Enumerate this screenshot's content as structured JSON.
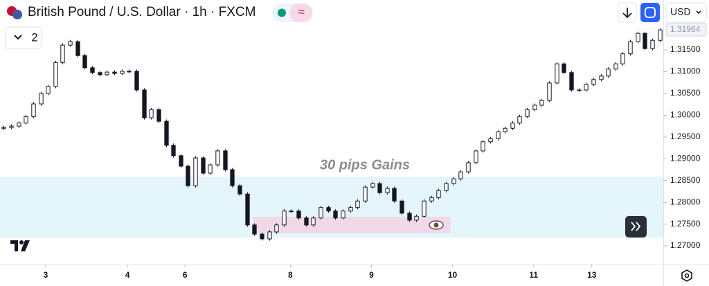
{
  "header": {
    "title": "British Pound / U.S. Dollar · 1h · FXCM",
    "currency": "USD",
    "layout_count": "2"
  },
  "chart_data": {
    "type": "candlestick",
    "annotation": "30 pips Gains",
    "up_color": "#ffffff",
    "down_color": "#131722",
    "border_color": "#131722",
    "xlim": [
      0,
      90
    ],
    "xticks": [
      {
        "value": 6.2,
        "label": "3"
      },
      {
        "value": 17.3,
        "label": "4"
      },
      {
        "value": 25.1,
        "label": "6"
      },
      {
        "value": 39.4,
        "label": "8"
      },
      {
        "value": 50.4,
        "label": "9"
      },
      {
        "value": 61.4,
        "label": "10"
      },
      {
        "value": 72.4,
        "label": "11"
      },
      {
        "value": 80.3,
        "label": "13"
      }
    ],
    "ylim": [
      1.26571,
      1.32646
    ],
    "yticks": [
      {
        "value": 1.27,
        "label": "1.27000"
      },
      {
        "value": 1.275,
        "label": "1.27500"
      },
      {
        "value": 1.28,
        "label": "1.28000"
      },
      {
        "value": 1.285,
        "label": "1.28500"
      },
      {
        "value": 1.29,
        "label": "1.29000"
      },
      {
        "value": 1.295,
        "label": "1.29500"
      },
      {
        "value": 1.3,
        "label": "1.30000"
      },
      {
        "value": 1.305,
        "label": "1.30500"
      },
      {
        "value": 1.31,
        "label": "1.31000"
      },
      {
        "value": 1.315,
        "label": "1.31500"
      }
    ],
    "last_price": {
      "value": 1.31964,
      "label": "1.31964"
    },
    "zones": [
      {
        "x": [
          0,
          90
        ],
        "y": [
          1.2719,
          1.2859
        ],
        "color": "#e4f6fb"
      },
      {
        "x": [
          34.3,
          61.1
        ],
        "y": [
          1.2729,
          1.2767
        ],
        "color": "#f1d9e8"
      }
    ],
    "candles": [
      [
        1.297,
        1.2976,
        1.2966,
        1.2972
      ],
      [
        1.2972,
        1.2979,
        1.2968,
        1.2975
      ],
      [
        1.2975,
        1.2986,
        1.2971,
        1.2982
      ],
      [
        1.2982,
        1.3001,
        1.2978,
        1.2997
      ],
      [
        1.2997,
        1.303,
        1.2993,
        1.3026
      ],
      [
        1.3026,
        1.3054,
        1.3022,
        1.305
      ],
      [
        1.305,
        1.307,
        1.3046,
        1.3066
      ],
      [
        1.3066,
        1.3125,
        1.3062,
        1.3121
      ],
      [
        1.3121,
        1.3165,
        1.3117,
        1.3161
      ],
      [
        1.3161,
        1.3173,
        1.3157,
        1.3169
      ],
      [
        1.3169,
        1.3173,
        1.3133,
        1.3137
      ],
      [
        1.3137,
        1.3141,
        1.3105,
        1.3109
      ],
      [
        1.3109,
        1.3113,
        1.3094,
        1.3098
      ],
      [
        1.3098,
        1.3102,
        1.3089,
        1.3093
      ],
      [
        1.3093,
        1.3103,
        1.3089,
        1.3099
      ],
      [
        1.3099,
        1.3103,
        1.3092,
        1.3096
      ],
      [
        1.3096,
        1.3105,
        1.3092,
        1.3101
      ],
      [
        1.3101,
        1.3105,
        1.3097,
        1.3101
      ],
      [
        1.3101,
        1.3105,
        1.3054,
        1.3058
      ],
      [
        1.3058,
        1.3062,
        1.299,
        1.2994
      ],
      [
        1.2994,
        1.3017,
        1.299,
        1.3013
      ],
      [
        1.3013,
        1.3017,
        1.2982,
        1.2986
      ],
      [
        1.2986,
        1.299,
        1.2927,
        1.2931
      ],
      [
        1.2931,
        1.2935,
        1.2903,
        1.2907
      ],
      [
        1.2907,
        1.2911,
        1.2879,
        1.2883
      ],
      [
        1.2883,
        1.2887,
        1.2834,
        1.2838
      ],
      [
        1.2838,
        1.2906,
        1.2834,
        1.2902
      ],
      [
        1.2902,
        1.2906,
        1.2863,
        1.2867
      ],
      [
        1.2867,
        1.289,
        1.2863,
        1.2886
      ],
      [
        1.2886,
        1.2922,
        1.2882,
        1.2918
      ],
      [
        1.2918,
        1.2922,
        1.2871,
        1.2875
      ],
      [
        1.2875,
        1.2879,
        1.2834,
        1.2838
      ],
      [
        1.2838,
        1.2842,
        1.2815,
        1.2819
      ],
      [
        1.2819,
        1.2823,
        1.2744,
        1.2748
      ],
      [
        1.2748,
        1.2752,
        1.2723,
        1.2727
      ],
      [
        1.2727,
        1.2731,
        1.2712,
        1.2716
      ],
      [
        1.2716,
        1.2736,
        1.2712,
        1.2732
      ],
      [
        1.2732,
        1.2752,
        1.2728,
        1.2748
      ],
      [
        1.2748,
        1.2784,
        1.2744,
        1.278
      ],
      [
        1.278,
        1.2784,
        1.2776,
        1.278
      ],
      [
        1.278,
        1.2784,
        1.276,
        1.2764
      ],
      [
        1.2764,
        1.2768,
        1.2744,
        1.2748
      ],
      [
        1.2748,
        1.2768,
        1.2744,
        1.2764
      ],
      [
        1.2764,
        1.2792,
        1.276,
        1.2788
      ],
      [
        1.2788,
        1.2792,
        1.2776,
        1.278
      ],
      [
        1.278,
        1.2784,
        1.276,
        1.2764
      ],
      [
        1.2764,
        1.2784,
        1.276,
        1.278
      ],
      [
        1.278,
        1.2792,
        1.2776,
        1.2788
      ],
      [
        1.2788,
        1.2807,
        1.2784,
        1.2803
      ],
      [
        1.2803,
        1.2839,
        1.2799,
        1.2835
      ],
      [
        1.2835,
        1.2847,
        1.2831,
        1.2843
      ],
      [
        1.2843,
        1.2847,
        1.2818,
        1.2822
      ],
      [
        1.2822,
        1.2836,
        1.2818,
        1.2832
      ],
      [
        1.2832,
        1.2836,
        1.2799,
        1.2803
      ],
      [
        1.2803,
        1.2807,
        1.2771,
        1.2775
      ],
      [
        1.2775,
        1.2779,
        1.2755,
        1.2759
      ],
      [
        1.2759,
        1.2772,
        1.2755,
        1.2768
      ],
      [
        1.2768,
        1.2807,
        1.2764,
        1.2803
      ],
      [
        1.2803,
        1.2815,
        1.2799,
        1.2811
      ],
      [
        1.2811,
        1.2831,
        1.2807,
        1.2827
      ],
      [
        1.2827,
        1.2847,
        1.2823,
        1.2843
      ],
      [
        1.2843,
        1.2858,
        1.2839,
        1.2854
      ],
      [
        1.2854,
        1.2874,
        1.285,
        1.287
      ],
      [
        1.287,
        1.2895,
        1.2866,
        1.2891
      ],
      [
        1.2891,
        1.2922,
        1.2887,
        1.2918
      ],
      [
        1.2918,
        1.2943,
        1.2914,
        1.2939
      ],
      [
        1.2939,
        1.295,
        1.2935,
        1.2946
      ],
      [
        1.2946,
        1.2966,
        1.2942,
        1.2962
      ],
      [
        1.2962,
        1.2974,
        1.2958,
        1.297
      ],
      [
        1.297,
        1.2986,
        1.2966,
        1.2982
      ],
      [
        1.2982,
        1.3001,
        1.2978,
        1.2997
      ],
      [
        1.2997,
        1.3017,
        1.2993,
        1.3013
      ],
      [
        1.3013,
        1.3027,
        1.3009,
        1.3023
      ],
      [
        1.3023,
        1.3038,
        1.3019,
        1.3034
      ],
      [
        1.3034,
        1.3078,
        1.303,
        1.3074
      ],
      [
        1.3074,
        1.3122,
        1.307,
        1.3118
      ],
      [
        1.3118,
        1.3122,
        1.3094,
        1.3098
      ],
      [
        1.3098,
        1.3102,
        1.3054,
        1.3058
      ],
      [
        1.3058,
        1.3062,
        1.3054,
        1.3058
      ],
      [
        1.3058,
        1.3075,
        1.3054,
        1.3071
      ],
      [
        1.3071,
        1.3086,
        1.3067,
        1.3082
      ],
      [
        1.3082,
        1.3094,
        1.3078,
        1.309
      ],
      [
        1.309,
        1.311,
        1.3086,
        1.3106
      ],
      [
        1.3106,
        1.3122,
        1.3102,
        1.3118
      ],
      [
        1.3118,
        1.3145,
        1.3114,
        1.3141
      ],
      [
        1.3141,
        1.3173,
        1.3137,
        1.3169
      ],
      [
        1.3169,
        1.3192,
        1.3165,
        1.3188
      ],
      [
        1.3188,
        1.3192,
        1.3149,
        1.3153
      ],
      [
        1.3153,
        1.3176,
        1.3149,
        1.3172
      ],
      [
        1.3172,
        1.32,
        1.3168,
        1.3196
      ]
    ]
  }
}
